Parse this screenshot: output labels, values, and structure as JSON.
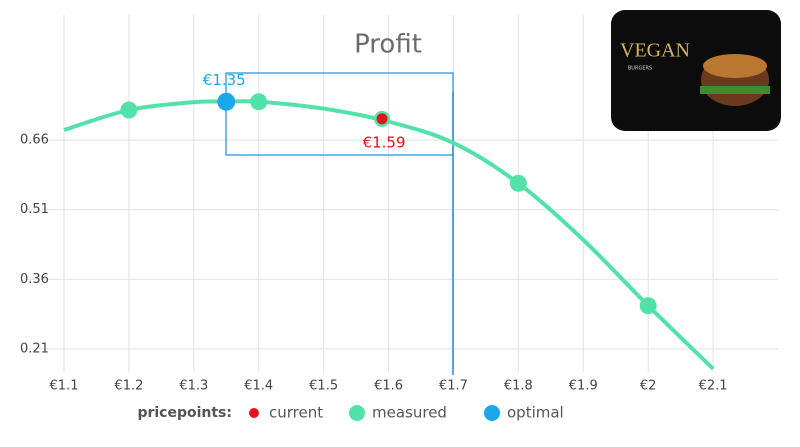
{
  "chart_data": {
    "type": "line",
    "title": "Profit",
    "xlim": [
      1.1,
      2.2
    ],
    "ylim": [
      0.16,
      0.93
    ],
    "xticks": [
      {
        "value": 1.1,
        "label": "€1.1"
      },
      {
        "value": 1.2,
        "label": "€1.2"
      },
      {
        "value": 1.3,
        "label": "€1.3"
      },
      {
        "value": 1.4,
        "label": "€1.4"
      },
      {
        "value": 1.5,
        "label": "€1.5"
      },
      {
        "value": 1.6,
        "label": "€1.6"
      },
      {
        "value": 1.7,
        "label": "€1.7"
      },
      {
        "value": 1.8,
        "label": "€1.8"
      },
      {
        "value": 1.9,
        "label": "€1.9"
      },
      {
        "value": 2.0,
        "label": "€2"
      },
      {
        "value": 2.1,
        "label": "€2.1"
      }
    ],
    "yticks": [
      0.21,
      0.36,
      0.51,
      0.66
    ],
    "grid": true,
    "curve": {
      "color": "#52e2a9",
      "x": [
        1.1,
        1.2,
        1.3,
        1.35,
        1.4,
        1.5,
        1.6,
        1.7,
        1.8,
        1.9,
        2.0,
        2.1
      ],
      "values": [
        0.682,
        0.725,
        0.742,
        0.743,
        0.743,
        0.728,
        0.7,
        0.654,
        0.567,
        0.445,
        0.303,
        0.167
      ]
    },
    "legend_title": "pricepoints:",
    "series": [
      {
        "name": "current",
        "color": "#e5121c",
        "x": [
          1.59
        ],
        "values": [
          0.706
        ],
        "value_labels": [
          "€1.59"
        ]
      },
      {
        "name": "measured",
        "color": "#52e2a9",
        "x": [
          1.2,
          1.4,
          1.8,
          2.0
        ],
        "values": [
          0.725,
          0.743,
          0.567,
          0.303
        ]
      },
      {
        "name": "optimal",
        "color": "#1aa7ec",
        "x": [
          1.35
        ],
        "values": [
          0.743
        ],
        "value_labels": [
          "€1.35"
        ]
      }
    ],
    "image": {
      "title": "VEGAN",
      "subtitle": "BURGERS"
    }
  }
}
